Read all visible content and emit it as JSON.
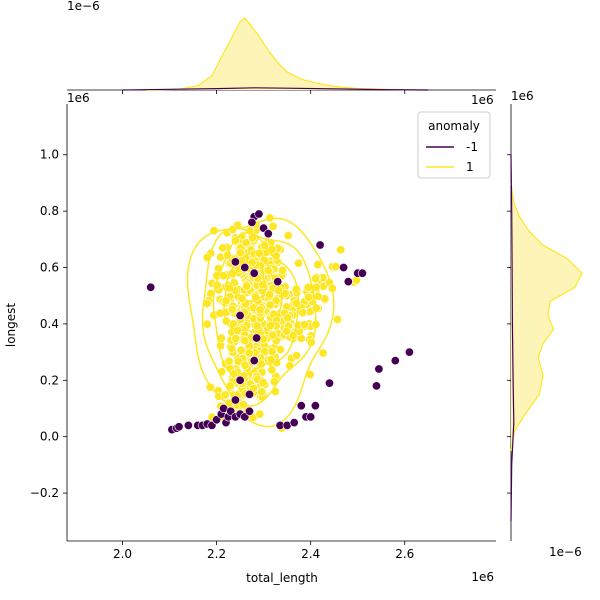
{
  "chart_data": {
    "type": "scatter",
    "xlabel": "total_length",
    "ylabel": "longest",
    "x_scale_label": "1e6",
    "y_scale_label": "1e6",
    "x_ticks": [
      2.0,
      2.2,
      2.4,
      2.6
    ],
    "x_tick_labels": [
      "2.0",
      "2.2",
      "2.4",
      "2.6"
    ],
    "y_ticks": [
      -0.2,
      0.0,
      0.2,
      0.4,
      0.6,
      0.8,
      1.0
    ],
    "y_tick_labels": [
      "−0.2",
      "0.0",
      "0.2",
      "0.4",
      "0.6",
      "0.8",
      "1.0"
    ],
    "xlim": [
      1.882,
      2.794
    ],
    "ylim": [
      -0.37,
      1.18
    ],
    "marg_x_scale_label": "1e−6",
    "marg_y_scale_label": "1e−6",
    "legend": {
      "title": "anomaly",
      "placement": "top-right",
      "entries": [
        {
          "label": "-1",
          "color": "#440154"
        },
        {
          "label": "1",
          "color": "#fde725"
        }
      ]
    },
    "colors": {
      "normal": "#fde725",
      "anomaly": "#440154",
      "normal_fill": "#fdf4b8"
    },
    "anomaly_points": {
      "x": [
        2.06,
        2.105,
        2.115,
        2.12,
        2.14,
        2.16,
        2.17,
        2.18,
        2.19,
        2.2,
        2.21,
        2.22,
        2.215,
        2.225,
        2.23,
        2.24,
        2.24,
        2.25,
        2.26,
        2.27,
        2.28,
        2.29,
        2.275,
        2.3,
        2.31,
        2.335,
        2.35,
        2.365,
        2.38,
        2.39,
        2.4,
        2.41,
        2.42,
        2.44,
        2.47,
        2.48,
        2.5,
        2.51,
        2.54,
        2.545,
        2.58,
        2.61,
        2.26,
        2.28,
        2.25,
        2.285,
        2.33,
        2.28,
        2.24,
        2.25,
        2.27
      ],
      "y": [
        0.53,
        0.025,
        0.03,
        0.035,
        0.04,
        0.04,
        0.04,
        0.045,
        0.04,
        0.06,
        0.08,
        0.05,
        0.1,
        0.07,
        0.09,
        0.07,
        0.13,
        0.08,
        0.07,
        0.09,
        0.78,
        0.79,
        0.76,
        0.74,
        0.72,
        0.04,
        0.04,
        0.05,
        0.11,
        0.07,
        0.07,
        0.11,
        0.68,
        0.19,
        0.6,
        0.55,
        0.58,
        0.58,
        0.18,
        0.24,
        0.27,
        0.3,
        0.6,
        0.58,
        0.43,
        0.35,
        0.55,
        0.27,
        0.62,
        0.2,
        0.15
      ]
    },
    "normal_clusters": [
      {
        "cx": 2.27,
        "cy": 0.55,
        "sx": 0.04,
        "sy": 0.08,
        "n": 160
      },
      {
        "cx": 2.29,
        "cy": 0.38,
        "sx": 0.04,
        "sy": 0.08,
        "n": 140
      },
      {
        "cx": 2.26,
        "cy": 0.18,
        "sx": 0.035,
        "sy": 0.06,
        "n": 90
      },
      {
        "cx": 2.36,
        "cy": 0.42,
        "sx": 0.045,
        "sy": 0.08,
        "n": 60
      },
      {
        "cx": 2.28,
        "cy": 0.68,
        "sx": 0.03,
        "sy": 0.05,
        "n": 40
      },
      {
        "cx": 2.44,
        "cy": 0.52,
        "sx": 0.04,
        "sy": 0.06,
        "n": 20
      }
    ],
    "contour_levels": [
      {
        "cx": 2.29,
        "cy": 0.43,
        "rx": 0.15,
        "ry": 0.36
      },
      {
        "cx": 2.285,
        "cy": 0.44,
        "rx": 0.12,
        "ry": 0.3
      },
      {
        "cx": 2.28,
        "cy": 0.46,
        "rx": 0.09,
        "ry": 0.24
      },
      {
        "cx": 2.275,
        "cy": 0.5,
        "rx": 0.06,
        "ry": 0.14
      },
      {
        "cx": 2.27,
        "cy": 0.55,
        "rx": 0.035,
        "ry": 0.07
      }
    ],
    "marginal_x_normal": {
      "x": [
        2.05,
        2.12,
        2.16,
        2.19,
        2.21,
        2.23,
        2.25,
        2.26,
        2.27,
        2.29,
        2.31,
        2.33,
        2.35,
        2.38,
        2.41,
        2.45,
        2.5,
        2.58,
        2.65
      ],
      "density": [
        0.0,
        0.01,
        0.06,
        0.2,
        0.45,
        0.7,
        0.95,
        1.0,
        0.92,
        0.75,
        0.55,
        0.38,
        0.25,
        0.15,
        0.1,
        0.05,
        0.02,
        0.005,
        0.0
      ]
    },
    "marginal_x_anomaly": {
      "x": [
        2.0,
        2.1,
        2.2,
        2.28,
        2.35,
        2.45,
        2.55,
        2.65
      ],
      "density": [
        0.0,
        0.01,
        0.02,
        0.03,
        0.025,
        0.015,
        0.005,
        0.0
      ]
    },
    "marginal_y_normal": {
      "y": [
        -0.05,
        0.02,
        0.08,
        0.15,
        0.22,
        0.28,
        0.33,
        0.38,
        0.43,
        0.48,
        0.53,
        0.58,
        0.63,
        0.68,
        0.73,
        0.78,
        0.83,
        0.9
      ],
      "density": [
        0.0,
        0.05,
        0.2,
        0.4,
        0.45,
        0.38,
        0.45,
        0.6,
        0.52,
        0.55,
        0.9,
        1.0,
        0.8,
        0.45,
        0.25,
        0.12,
        0.04,
        0.0
      ]
    },
    "marginal_y_anomaly": {
      "y": [
        -0.3,
        -0.1,
        0.0,
        0.05,
        0.2,
        0.4,
        0.6,
        0.8,
        1.0
      ],
      "density": [
        0.0,
        0.01,
        0.03,
        0.04,
        0.03,
        0.02,
        0.015,
        0.01,
        0.0
      ]
    }
  }
}
